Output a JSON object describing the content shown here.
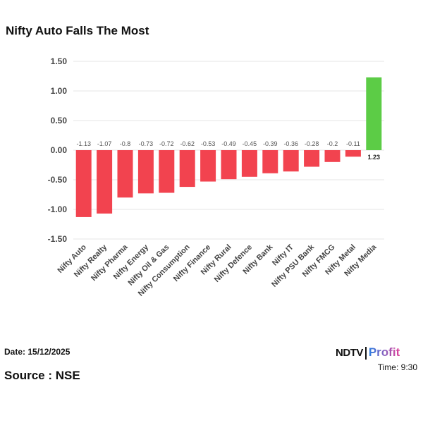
{
  "title": "Nifty Auto Falls The Most",
  "footer": {
    "date": "Date: 15/12/2025",
    "time": "Time: 9:30",
    "source": "Source : NSE",
    "logo": "NDTV Profit",
    "logo_parts": [
      "NDTV",
      "Profit"
    ]
  },
  "colors": {
    "negative": "#f2434f",
    "positive": "#5ccc46",
    "grid": "#e6e6e6"
  },
  "chart_data": {
    "type": "bar",
    "categories": [
      "Nifty Auto",
      "Nifty Realty",
      "Nifty Pharma",
      "Nifty Energy",
      "Nifty Oil & Gas",
      "Nifty Consumption",
      "Nifty Finance",
      "Nifty Rural",
      "Nifty Defence",
      "Nifty Bank",
      "Nifty IT",
      "Nifty PSU Bank",
      "Nifty FMCG",
      "Nifty Metal",
      "Nifty Media"
    ],
    "values": [
      -1.13,
      -1.07,
      -0.8,
      -0.73,
      -0.72,
      -0.62,
      -0.53,
      -0.49,
      -0.45,
      -0.39,
      -0.36,
      -0.28,
      -0.2,
      -0.11,
      1.23
    ],
    "data_labels": [
      "-1.13",
      "-1.07",
      "-0.8",
      "-0.73",
      "-0.72",
      "-0.62",
      "-0.53",
      "-0.49",
      "-0.45",
      "-0.39",
      "-0.36",
      "-0.28",
      "-0.2",
      "-0.11",
      "1.23"
    ],
    "yticks": [
      "1.50",
      "1.00",
      "0.50",
      "0.00",
      "-0.50",
      "-1.00",
      "-1.50"
    ],
    "ylim": [
      -1.5,
      1.5
    ],
    "grid": true,
    "xlabel": "",
    "ylabel": ""
  }
}
